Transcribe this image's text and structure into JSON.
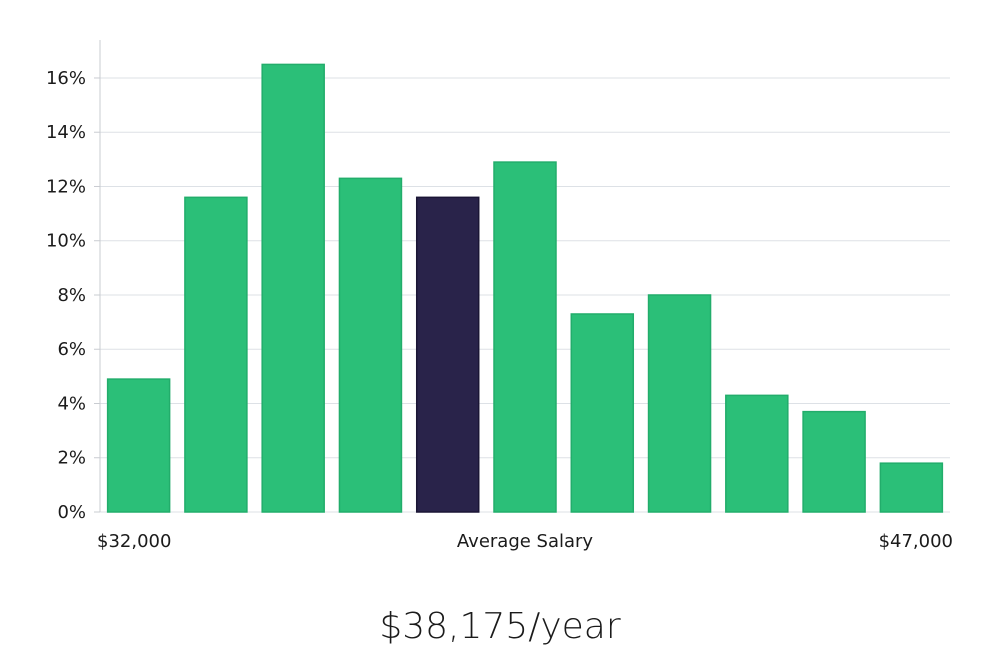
{
  "chart_data": {
    "type": "bar",
    "title": "",
    "xlabel": "Average Salary",
    "ylabel": "",
    "x_start_label": "$32,000",
    "x_end_label": "$47,000",
    "ylim": [
      0,
      17.4
    ],
    "yticks": [
      0,
      2,
      4,
      6,
      8,
      10,
      12,
      14,
      16
    ],
    "ytick_labels": [
      "0%",
      "2%",
      "4%",
      "6%",
      "8%",
      "10%",
      "12%",
      "14%",
      "16%"
    ],
    "values": [
      4.9,
      11.6,
      16.5,
      12.3,
      11.6,
      12.9,
      7.3,
      8.0,
      4.3,
      3.7,
      1.8
    ],
    "highlight_index": 4,
    "colors": {
      "bar": "#2bbf78",
      "highlight": "#29234a",
      "grid": "#dde1e6",
      "axis": "#c9ccd1"
    }
  },
  "salary": {
    "display": "$38,175/year"
  }
}
